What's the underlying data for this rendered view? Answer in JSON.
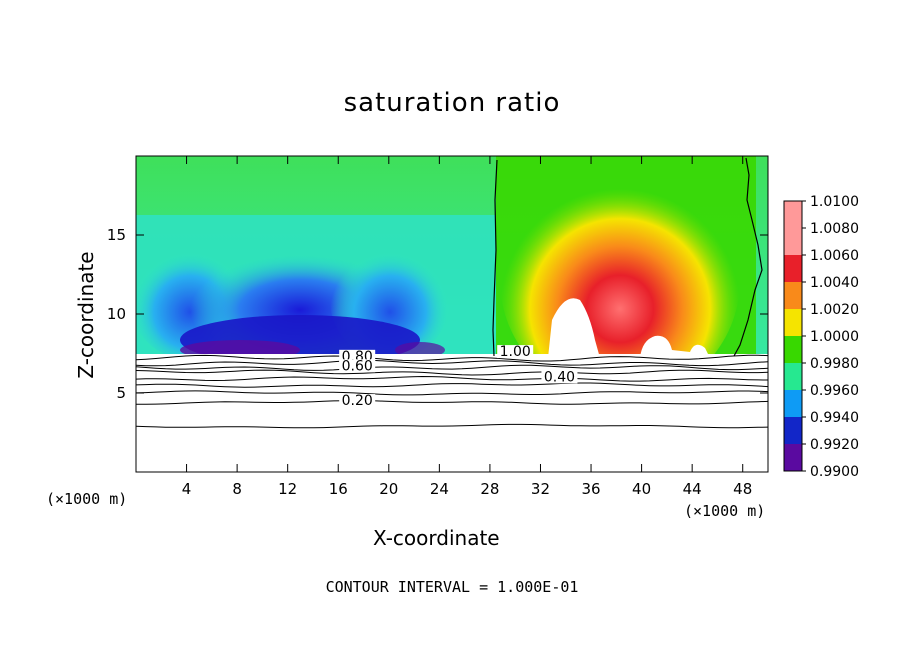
{
  "chart_data": {
    "type": "contour",
    "title": "saturation ratio",
    "xlabel": "X-coordinate",
    "ylabel": "Z-coordinate",
    "x_unit_label": "(×1000 m)",
    "xlim": [
      0,
      50
    ],
    "ylim": [
      0,
      20
    ],
    "x_ticks": [
      "4",
      "8",
      "12",
      "16",
      "20",
      "24",
      "28",
      "32",
      "36",
      "40",
      "44",
      "48"
    ],
    "y_ticks": [
      "5",
      "10",
      "15"
    ],
    "footer": "CONTOUR INTERVAL = 1.000E-01",
    "colorbar": {
      "ticks": [
        "1.0100",
        "1.0080",
        "1.0060",
        "1.0040",
        "1.0020",
        "1.0000",
        "0.9980",
        "0.9960",
        "0.9940",
        "0.9920",
        "0.9900"
      ],
      "colors": [
        "#ff9999",
        "#e8202a",
        "#f98a1a",
        "#f5e400",
        "#38d800",
        "#26e890",
        "#0e9bf5",
        "#1226c8",
        "#5a0aa0"
      ]
    },
    "contour_line_labels": [
      {
        "text": "0.80",
        "x": 17.5,
        "z": 7.1
      },
      {
        "text": "0.60",
        "x": 17.5,
        "z": 6.5
      },
      {
        "text": "0.40",
        "x": 33.5,
        "z": 5.8
      },
      {
        "text": "0.20",
        "x": 17.5,
        "z": 4.3
      },
      {
        "text": "1.00",
        "x": 30.0,
        "z": 7.4
      }
    ],
    "low_contour_levels_z": [
      2.9,
      4.4,
      5.0,
      5.5,
      5.9,
      6.3,
      6.6,
      6.9,
      7.2
    ]
  }
}
